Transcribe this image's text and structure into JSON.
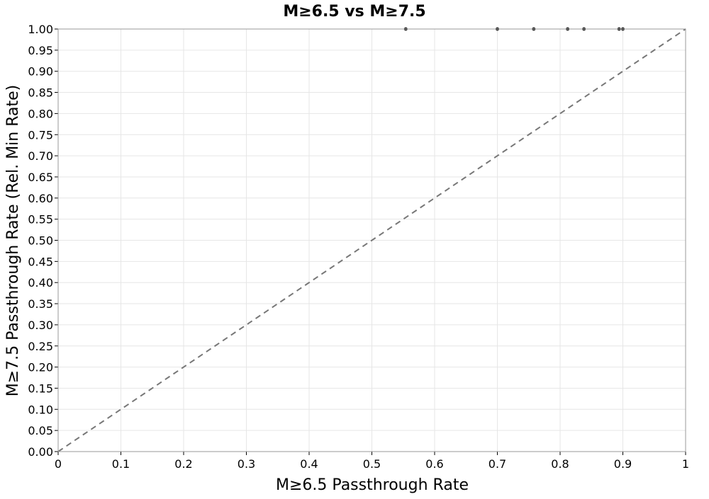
{
  "chart_data": {
    "type": "scatter",
    "title": "M≥6.5 vs M≥7.5",
    "xlabel": "M≥6.5 Passthrough Rate",
    "ylabel": "M≥7.5 Passthrough Rate (Rel. Min Rate)",
    "xlim": [
      0,
      1
    ],
    "ylim": [
      0,
      1
    ],
    "x_ticks": [
      "0",
      "0.1",
      "0.2",
      "0.3",
      "0.4",
      "0.5",
      "0.6",
      "0.7",
      "0.8",
      "0.9",
      "1"
    ],
    "y_ticks": [
      "0.00",
      "0.05",
      "0.10",
      "0.15",
      "0.20",
      "0.25",
      "0.30",
      "0.35",
      "0.40",
      "0.45",
      "0.50",
      "0.55",
      "0.60",
      "0.65",
      "0.70",
      "0.75",
      "0.80",
      "0.85",
      "0.90",
      "0.95",
      "1.00"
    ],
    "grid": true,
    "reference_line": {
      "type": "y=x",
      "style": "dashed",
      "color": "#777777"
    },
    "points": [
      {
        "x": 0.554,
        "y": 1.0
      },
      {
        "x": 0.7,
        "y": 1.0
      },
      {
        "x": 0.758,
        "y": 1.0
      },
      {
        "x": 0.812,
        "y": 1.0
      },
      {
        "x": 0.838,
        "y": 1.0
      },
      {
        "x": 0.894,
        "y": 1.0
      },
      {
        "x": 0.9,
        "y": 1.0
      }
    ],
    "point_color": "#333333"
  }
}
